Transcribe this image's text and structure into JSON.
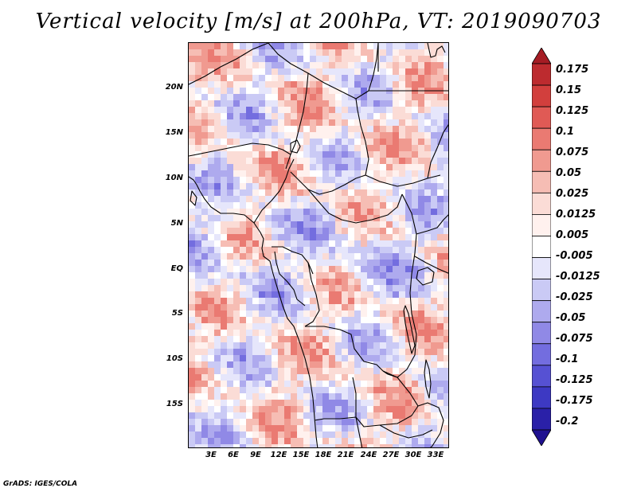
{
  "title": "Vertical velocity [m/s] at 200hPa, VT: 2019090703",
  "footer": "GrADS: IGES/COLA",
  "map": {
    "lat_labels": [
      "20N",
      "15N",
      "10N",
      "5N",
      "EQ",
      "5S",
      "10S",
      "15S"
    ],
    "lon_labels": [
      "3E",
      "6E",
      "9E",
      "12E",
      "15E",
      "18E",
      "21E",
      "24E",
      "27E",
      "30E",
      "33E"
    ]
  },
  "colorbar": {
    "labels": [
      "0.175",
      "0.15",
      "0.125",
      "0.1",
      "0.075",
      "0.05",
      "0.025",
      "0.0125",
      "0.005",
      "-0.005",
      "-0.0125",
      "-0.025",
      "-0.05",
      "-0.075",
      "-0.1",
      "-0.125",
      "-0.175",
      "-0.2"
    ],
    "colors": [
      "#a51c24",
      "#bd2b2f",
      "#d23f3d",
      "#e05a55",
      "#ea7a72",
      "#f09a90",
      "#f6bdb4",
      "#fbdcd6",
      "#fff1ee",
      "#ffffff",
      "#e6e6fb",
      "#cacaf5",
      "#aeaaee",
      "#9089e6",
      "#736ddf",
      "#5651d3",
      "#3d39c3",
      "#2a20a8",
      "#1f1190"
    ],
    "tip_top_color": "#a51c24",
    "tip_bottom_color": "#1f1190"
  },
  "chart_data": {
    "type": "heatmap",
    "title": "Vertical velocity [m/s] at 200hPa, VT: 2019090703",
    "variable": "Vertical velocity",
    "units": "m/s",
    "level": "200hPa",
    "valid_time": "2019090703",
    "lat_ticks": [
      "20N",
      "15N",
      "10N",
      "5N",
      "EQ",
      "5S",
      "10S",
      "15S"
    ],
    "lon_ticks": [
      "3E",
      "6E",
      "9E",
      "12E",
      "15E",
      "18E",
      "21E",
      "24E",
      "27E",
      "30E",
      "33E"
    ],
    "lon_range": [
      0.3,
      35.0
    ],
    "lat_range": [
      -19.6,
      24.5
    ],
    "contour_levels": [
      -0.2,
      -0.175,
      -0.125,
      -0.1,
      -0.075,
      -0.05,
      -0.025,
      -0.0125,
      -0.005,
      0.005,
      0.0125,
      0.025,
      0.05,
      0.075,
      0.1,
      0.125,
      0.15,
      0.175
    ]
  }
}
